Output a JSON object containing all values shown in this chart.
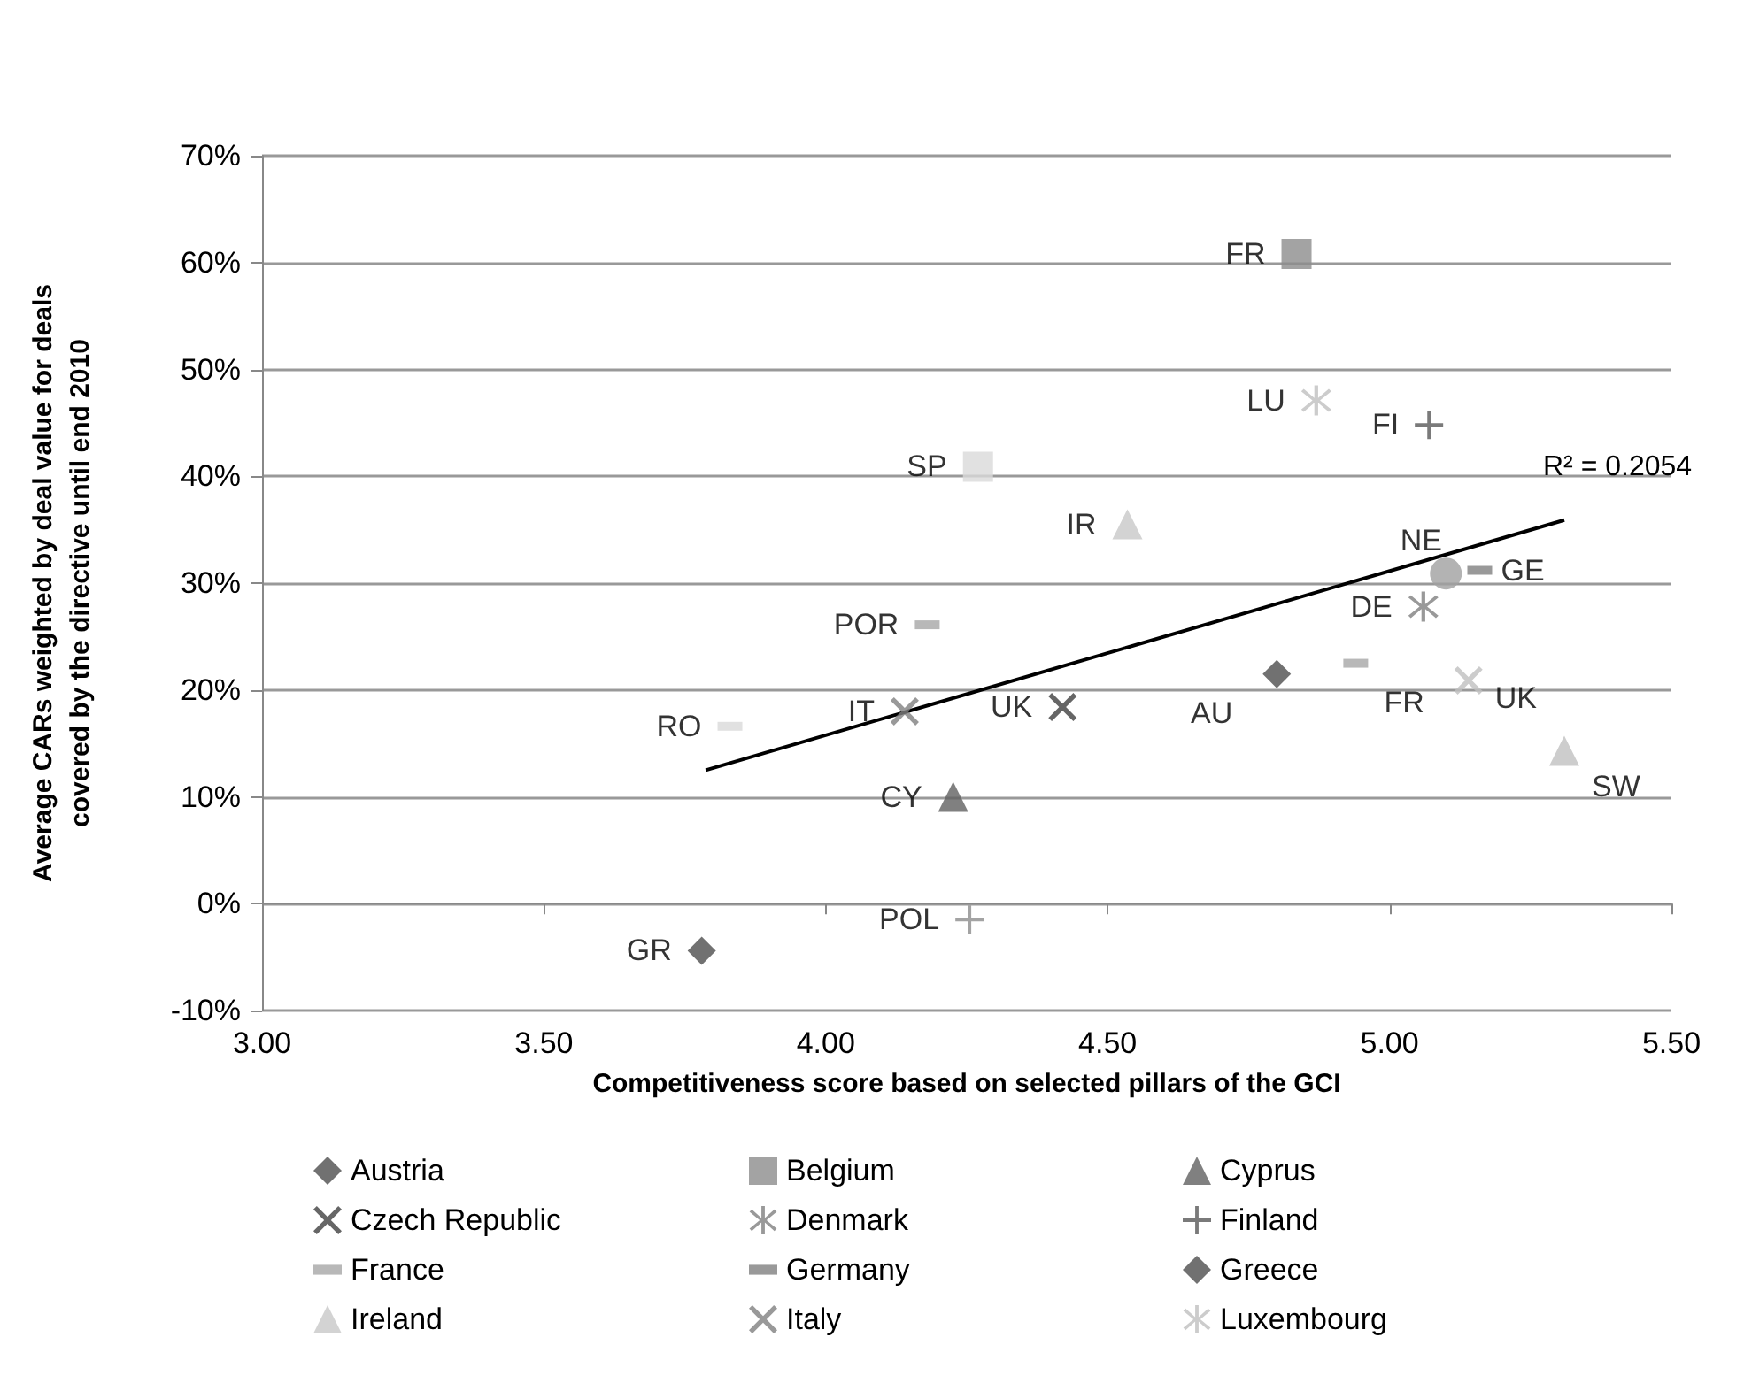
{
  "chart_data": {
    "type": "scatter",
    "xlabel": "Competitiveness score based on selected pillars of the GCI",
    "ylabel": "Average CARs weighted by deal value for deals covered by the directive until end 2010",
    "xlim": [
      3,
      5.5
    ],
    "xticks": [
      {
        "value": 3,
        "label": "3.00"
      },
      {
        "value": 3.5,
        "label": "3.50"
      },
      {
        "value": 4,
        "label": "4.00"
      },
      {
        "value": 4.5,
        "label": "4.50"
      },
      {
        "value": 5,
        "label": "5.00"
      },
      {
        "value": 5.5,
        "label": "5.50"
      }
    ],
    "ylim": [
      -10,
      70
    ],
    "yticks": [
      {
        "value": -10,
        "label": "-10%"
      },
      {
        "value": 0,
        "label": "0%"
      },
      {
        "value": 10,
        "label": "10%"
      },
      {
        "value": 20,
        "label": "20%"
      },
      {
        "value": 30,
        "label": "30%"
      },
      {
        "value": 40,
        "label": "40%"
      },
      {
        "value": 50,
        "label": "50%"
      },
      {
        "value": 60,
        "label": "60%"
      },
      {
        "value": 70,
        "label": "70%"
      }
    ],
    "grid": "y",
    "legend": "bottom",
    "annotations": [
      {
        "text": "R² = 0.2054",
        "x": 5.31,
        "y": 35.9
      }
    ],
    "series": [
      {
        "name": "Austria",
        "color": "#4d4d4d",
        "marker": "diamond",
        "x": [
          4.8
        ],
        "values": [
          21.5
        ],
        "value_labels": [
          "AU"
        ]
      },
      {
        "name": "Belgium",
        "color": "#8c8c8c",
        "marker": "square",
        "x": [
          4.835
        ],
        "values": [
          60.8
        ],
        "value_labels": [
          "FR"
        ]
      },
      {
        "name": "Cyprus",
        "color": "#606060",
        "marker": "triangle",
        "x": [
          4.226
        ],
        "values": [
          10.0
        ],
        "value_labels": [
          "CY"
        ]
      },
      {
        "name": "Czech Republic",
        "color": "#404040",
        "marker": "cross",
        "x": [
          4.42
        ],
        "values": [
          18.4
        ],
        "value_labels": [
          "UK"
        ]
      },
      {
        "name": "Denmark",
        "color": "#7f7f7f",
        "marker": "star",
        "x": [
          5.06
        ],
        "values": [
          27.8
        ],
        "value_labels": [
          "DE"
        ]
      },
      {
        "name": "Finland",
        "color": "#595959",
        "marker": "plus",
        "x": [
          5.07
        ],
        "values": [
          44.8
        ],
        "value_labels": [
          "FI"
        ]
      },
      {
        "name": "France",
        "color": "#a6a6a6",
        "x": [
          4.94
        ],
        "values": [
          22.5
        ],
        "value_labels": [
          "FR"
        ]
      },
      {
        "name": "Germany",
        "color": "#7f7f7f",
        "x": [
          5.16
        ],
        "values": [
          31.2
        ],
        "value_labels": [
          "GE"
        ]
      },
      {
        "name": "Greece",
        "color": "#4d4d4d",
        "marker": "diamond",
        "x": [
          3.78
        ],
        "values": [
          -4.4
        ],
        "value_labels": [
          "GR"
        ]
      },
      {
        "name": "Ireland",
        "color": "#c8c8c8",
        "marker": "triangle",
        "x": [
          4.535
        ],
        "values": [
          35.5
        ],
        "value_labels": [
          "IR"
        ]
      },
      {
        "name": "Italy",
        "color": "#808080",
        "marker": "cross",
        "x": [
          4.14
        ],
        "values": [
          18.0
        ],
        "value_labels": [
          "IT"
        ]
      },
      {
        "name": "Luxembourg",
        "color": "#bfbfbf",
        "marker": "star",
        "x": [
          4.87
        ],
        "values": [
          47.1
        ],
        "value_labels": [
          "LU"
        ]
      },
      {
        "color": "#a0a0a0",
        "marker": "circle",
        "x": [
          5.1
        ],
        "values": [
          30.9
        ],
        "value_labels": [
          "NE"
        ]
      },
      {
        "color": "#8c8c8c",
        "marker": "plus",
        "x": [
          4.255
        ],
        "values": [
          -1.5
        ],
        "value_labels": [
          "POL"
        ]
      },
      {
        "color": "#a6a6a6",
        "x": [
          4.18
        ],
        "values": [
          26.1
        ],
        "value_labels": [
          "POR"
        ]
      },
      {
        "color": "#d9d9d9",
        "x": [
          3.83
        ],
        "values": [
          16.6
        ],
        "value_labels": [
          "RO"
        ]
      },
      {
        "color": "#d9d9d9",
        "marker": "square",
        "x": [
          4.27
        ],
        "values": [
          40.9
        ],
        "value_labels": [
          "SP"
        ]
      },
      {
        "color": "#c0c0c0",
        "marker": "triangle",
        "x": [
          5.31
        ],
        "values": [
          14.3
        ],
        "value_labels": [
          "SW"
        ]
      },
      {
        "color": "#bfbfbf",
        "marker": "cross",
        "x": [
          5.14
        ],
        "values": [
          20.9
        ],
        "value_labels": [
          "UK"
        ]
      },
      {
        "type": "line",
        "color": "#000000",
        "marker": "none",
        "x": [
          3.787,
          5.31
        ],
        "values": [
          12.5,
          35.9
        ]
      }
    ]
  }
}
